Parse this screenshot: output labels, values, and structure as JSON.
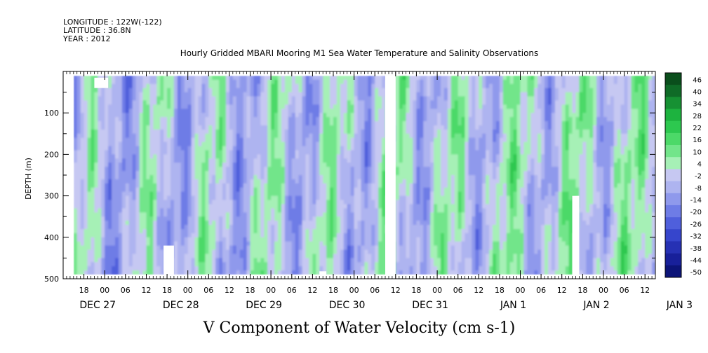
{
  "header": {
    "longitude_line": "LONGITUDE : 122W(-122)",
    "latitude_line": "LATITUDE : 36.8N",
    "year_line": "YEAR : 2012"
  },
  "chart_data": {
    "type": "heatmap",
    "title": "Hourly Gridded MBARI Mooring M1 Sea Water Temperature and Salinity Observations",
    "xlabel": "",
    "ylabel": "DEPTH (m)",
    "caption": "V Component of Water Velocity (cm s-1)",
    "y_axis": {
      "range": [
        500,
        0
      ],
      "inverted": true,
      "tick_values": [
        100,
        200,
        300,
        400,
        500
      ],
      "tick_labels": [
        "100",
        "200",
        "300",
        "400",
        "500"
      ]
    },
    "x_axis": {
      "range_hours": [
        "2012-12-27 12:00",
        "2013-01-03 15:00"
      ],
      "hour_tick_labels": [
        "18",
        "00",
        "06",
        "12",
        "18",
        "00",
        "06",
        "12",
        "18",
        "00",
        "06",
        "12",
        "18",
        "00",
        "06",
        "12",
        "18",
        "00",
        "06",
        "12",
        "18",
        "00",
        "06",
        "12",
        "18",
        "00",
        "06",
        "12"
      ],
      "day_labels": [
        "DEC 27",
        "DEC 28",
        "DEC 29",
        "DEC 30",
        "DEC 31",
        "JAN  1",
        "JAN  2",
        "JAN  3"
      ]
    },
    "data_extent": {
      "depth_range_m": [
        10,
        490
      ],
      "time_start": "2012-12-27 15:00",
      "time_end": "2013-01-03 15:00"
    },
    "colorbar": {
      "range": [
        -50,
        50
      ],
      "labels": [
        "46",
        "40",
        "34",
        "28",
        "22",
        "16",
        "10",
        "4",
        "-2",
        "-8",
        "-14",
        "-20",
        "-26",
        "-32",
        "-38",
        "-44",
        "-50"
      ],
      "colors": [
        "#0a4e1c",
        "#0f6b27",
        "#169133",
        "#1db33f",
        "#2dc84f",
        "#4cd968",
        "#72e58a",
        "#a6f0b6",
        "#c6c8f2",
        "#aeb4f0",
        "#8f99ec",
        "#6e7ce6",
        "#4f5fdc",
        "#3645cc",
        "#2631b4",
        "#18209a",
        "#0c1478"
      ]
    },
    "notes": {
      "dominant_pattern": "alternating vertical bands of weak negative (light blue, about -2 to -14) and weak positive (green, about 4 to 22) velocity across all depths",
      "gaps": "white data gaps near DEC 28 00-06 and near JAN 2 12-18"
    }
  }
}
